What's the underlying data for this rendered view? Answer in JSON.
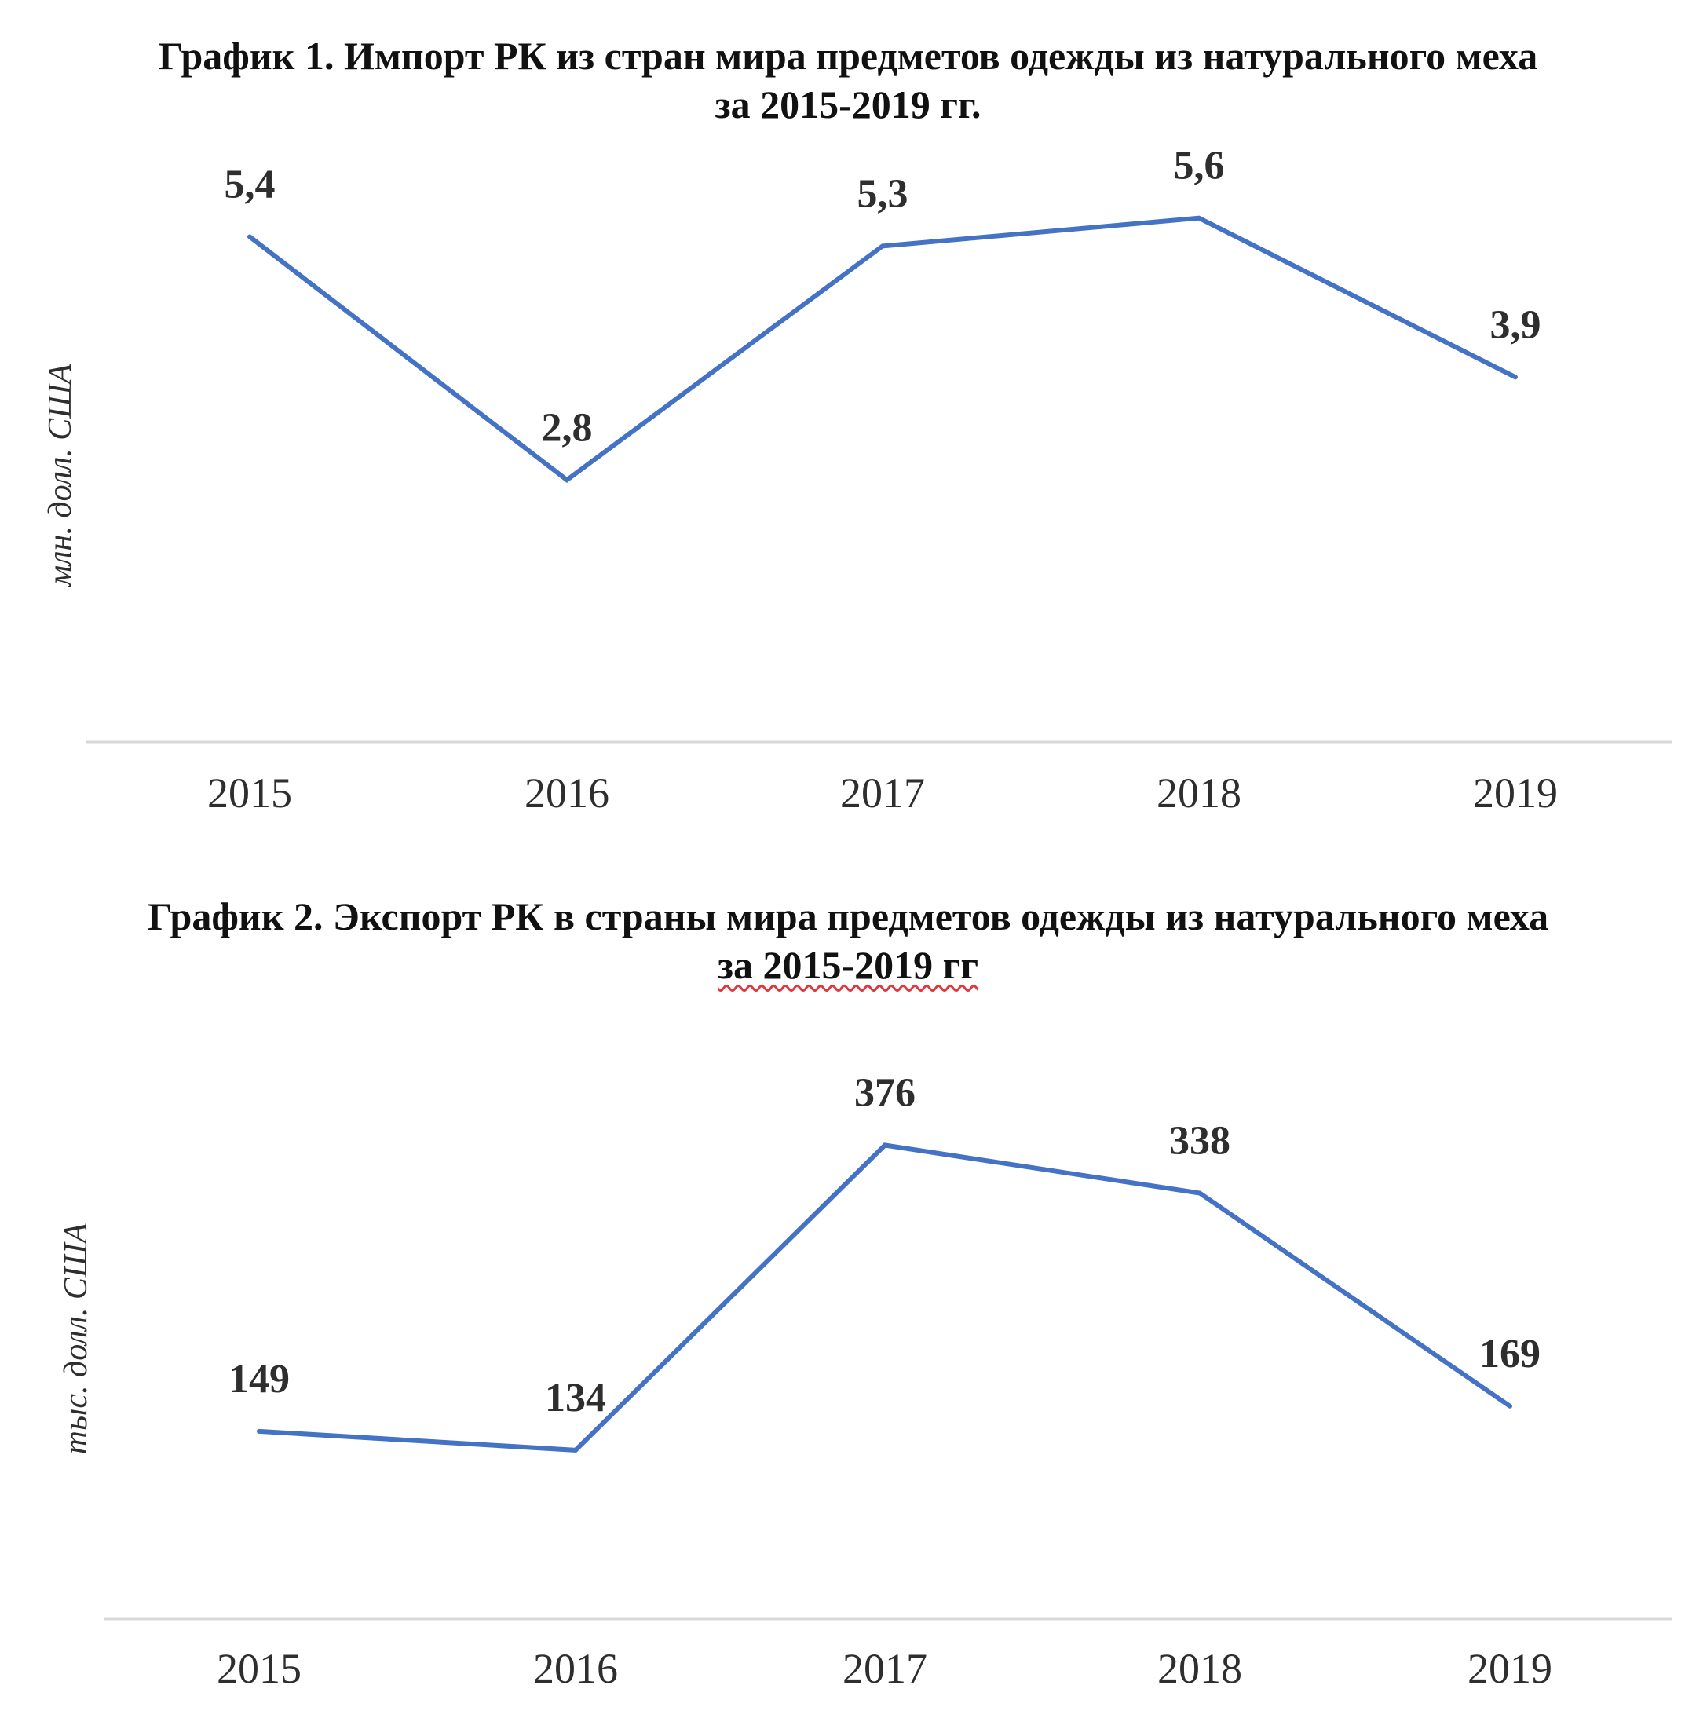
{
  "chart_data": [
    {
      "type": "line",
      "title": "График 1. Импорт РК из стран мира предметов одежды из натурального меха",
      "subtitle": "за 2015-2019 гг.",
      "xlabel": "",
      "ylabel": "млн. долл. США",
      "categories": [
        "2015",
        "2016",
        "2017",
        "2018",
        "2019"
      ],
      "series": [
        {
          "values": [
            5.4,
            2.8,
            5.3,
            5.6,
            3.9
          ],
          "data_labels": [
            "5,4",
            "2,8",
            "5,3",
            "5,6",
            "3,9"
          ],
          "color": "#4472C4"
        }
      ],
      "ylim": [
        0,
        6
      ],
      "grid": false,
      "legend": "none"
    },
    {
      "type": "line",
      "title": "График 2. Экспорт РК в страны мира предметов одежды из натурального меха",
      "subtitle": "за 2015-2019 гг",
      "xlabel": "",
      "ylabel": "тыс. долл. США",
      "categories": [
        "2015",
        "2016",
        "2017",
        "2018",
        "2019"
      ],
      "series": [
        {
          "values": [
            149,
            134,
            376,
            338,
            169
          ],
          "data_labels": [
            "149",
            "134",
            "376",
            "338",
            "169"
          ],
          "color": "#4472C4"
        }
      ],
      "ylim": [
        0,
        400
      ],
      "grid": false,
      "legend": "none"
    }
  ],
  "colors": {
    "line": "#4472C4",
    "axis": "#d9d9d9",
    "text": "#2e2e2e",
    "spellcheck": "#e0383e"
  }
}
